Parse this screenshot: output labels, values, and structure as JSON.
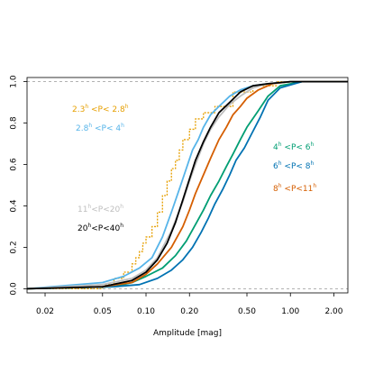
{
  "chart_data": {
    "type": "line",
    "title": "",
    "xlabel": "Amplitude [mag]",
    "ylabel": "",
    "xscale": "log",
    "xlim": [
      0.015,
      2.5
    ],
    "ylim": [
      -0.02,
      1.02
    ],
    "x_ticks": [
      0.02,
      0.05,
      0.1,
      0.2,
      0.5,
      1.0,
      2.0
    ],
    "x_tick_labels": [
      "0.02",
      "0.05",
      "0.10",
      "0.20",
      "0.50",
      "1.00",
      "2.00"
    ],
    "y_ticks": [
      0.0,
      0.2,
      0.4,
      0.6,
      0.8,
      1.0
    ],
    "y_tick_labels": [
      "0.0",
      "0.2",
      "0.4",
      "0.6",
      "0.8",
      "1.0"
    ],
    "reference_lines": [
      0,
      1
    ],
    "grid": false,
    "series": [
      {
        "label_parts": [
          "2.3",
          "h",
          " <P< 2.8",
          "h"
        ],
        "color": "#E69F00",
        "style": "step",
        "x": [
          0.015,
          0.05,
          0.06,
          0.07,
          0.08,
          0.085,
          0.09,
          0.095,
          0.1,
          0.11,
          0.12,
          0.13,
          0.14,
          0.15,
          0.16,
          0.17,
          0.18,
          0.2,
          0.22,
          0.25,
          0.3,
          0.4,
          0.55,
          0.8,
          2.5
        ],
        "y": [
          0.0,
          0.02,
          0.05,
          0.08,
          0.12,
          0.15,
          0.18,
          0.22,
          0.25,
          0.3,
          0.37,
          0.45,
          0.52,
          0.58,
          0.62,
          0.67,
          0.72,
          0.77,
          0.82,
          0.85,
          0.88,
          0.95,
          0.98,
          1.0,
          1.0
        ]
      },
      {
        "label_parts": [
          "2.8",
          "h",
          " <P< 4",
          "h"
        ],
        "color": "#56B4E9",
        "style": "line",
        "x": [
          0.015,
          0.05,
          0.07,
          0.09,
          0.11,
          0.13,
          0.15,
          0.17,
          0.19,
          0.21,
          0.23,
          0.25,
          0.28,
          0.32,
          0.38,
          0.45,
          0.55,
          0.7,
          1.0,
          2.5
        ],
        "y": [
          0.0,
          0.03,
          0.06,
          0.1,
          0.15,
          0.25,
          0.37,
          0.48,
          0.58,
          0.67,
          0.72,
          0.78,
          0.84,
          0.88,
          0.93,
          0.96,
          0.98,
          0.99,
          1.0,
          1.0
        ]
      },
      {
        "label_parts": [
          "4",
          "h",
          " <P< 6",
          "h"
        ],
        "color": "#009E73",
        "style": "line",
        "x": [
          0.015,
          0.06,
          0.08,
          0.1,
          0.13,
          0.16,
          0.19,
          0.22,
          0.25,
          0.28,
          0.32,
          0.36,
          0.4,
          0.45,
          0.5,
          0.6,
          0.7,
          0.85,
          1.2,
          2.5
        ],
        "y": [
          0.0,
          0.01,
          0.03,
          0.06,
          0.1,
          0.16,
          0.23,
          0.31,
          0.38,
          0.45,
          0.52,
          0.59,
          0.65,
          0.72,
          0.78,
          0.86,
          0.93,
          0.98,
          1.0,
          1.0
        ]
      },
      {
        "label_parts": [
          "6",
          "h",
          " <P< 8",
          "h"
        ],
        "color": "#0072B2",
        "style": "line",
        "x": [
          0.015,
          0.06,
          0.09,
          0.12,
          0.15,
          0.18,
          0.21,
          0.24,
          0.27,
          0.3,
          0.34,
          0.38,
          0.42,
          0.48,
          0.55,
          0.62,
          0.7,
          0.85,
          1.2,
          2.5
        ],
        "y": [
          0.0,
          0.01,
          0.02,
          0.05,
          0.09,
          0.14,
          0.2,
          0.27,
          0.34,
          0.41,
          0.48,
          0.55,
          0.62,
          0.68,
          0.76,
          0.83,
          0.91,
          0.97,
          1.0,
          1.0
        ]
      },
      {
        "label_parts": [
          "8",
          "h",
          " <P<11",
          "h"
        ],
        "color": "#D55E00",
        "style": "line",
        "x": [
          0.015,
          0.05,
          0.08,
          0.1,
          0.12,
          0.15,
          0.18,
          0.2,
          0.22,
          0.25,
          0.28,
          0.32,
          0.36,
          0.4,
          0.45,
          0.5,
          0.6,
          0.75,
          1.0,
          2.5
        ],
        "y": [
          0.0,
          0.01,
          0.03,
          0.07,
          0.12,
          0.2,
          0.3,
          0.38,
          0.46,
          0.55,
          0.63,
          0.72,
          0.78,
          0.84,
          0.88,
          0.92,
          0.96,
          0.99,
          1.0,
          1.0
        ]
      },
      {
        "label_parts": [
          "11",
          "h",
          "<P<20",
          "h"
        ],
        "color": "#BEBEBE",
        "style": "line",
        "x": [
          0.015,
          0.05,
          0.08,
          0.1,
          0.12,
          0.15,
          0.18,
          0.2,
          0.22,
          0.25,
          0.28,
          0.32,
          0.38,
          0.45,
          0.55,
          0.7,
          1.0,
          2.5
        ],
        "y": [
          0.0,
          0.02,
          0.05,
          0.09,
          0.15,
          0.28,
          0.42,
          0.52,
          0.6,
          0.7,
          0.77,
          0.83,
          0.89,
          0.93,
          0.97,
          0.99,
          1.0,
          1.0
        ]
      },
      {
        "label_parts": [
          "20",
          "h",
          "<P<40",
          "h"
        ],
        "color": "#000000",
        "style": "line",
        "x": [
          0.015,
          0.05,
          0.08,
          0.1,
          0.12,
          0.14,
          0.16,
          0.18,
          0.2,
          0.22,
          0.25,
          0.28,
          0.32,
          0.38,
          0.45,
          0.55,
          0.7,
          1.0,
          2.5
        ],
        "y": [
          0.0,
          0.01,
          0.04,
          0.08,
          0.14,
          0.22,
          0.32,
          0.43,
          0.53,
          0.62,
          0.71,
          0.78,
          0.85,
          0.9,
          0.95,
          0.98,
          0.99,
          1.0,
          1.0
        ]
      }
    ]
  }
}
